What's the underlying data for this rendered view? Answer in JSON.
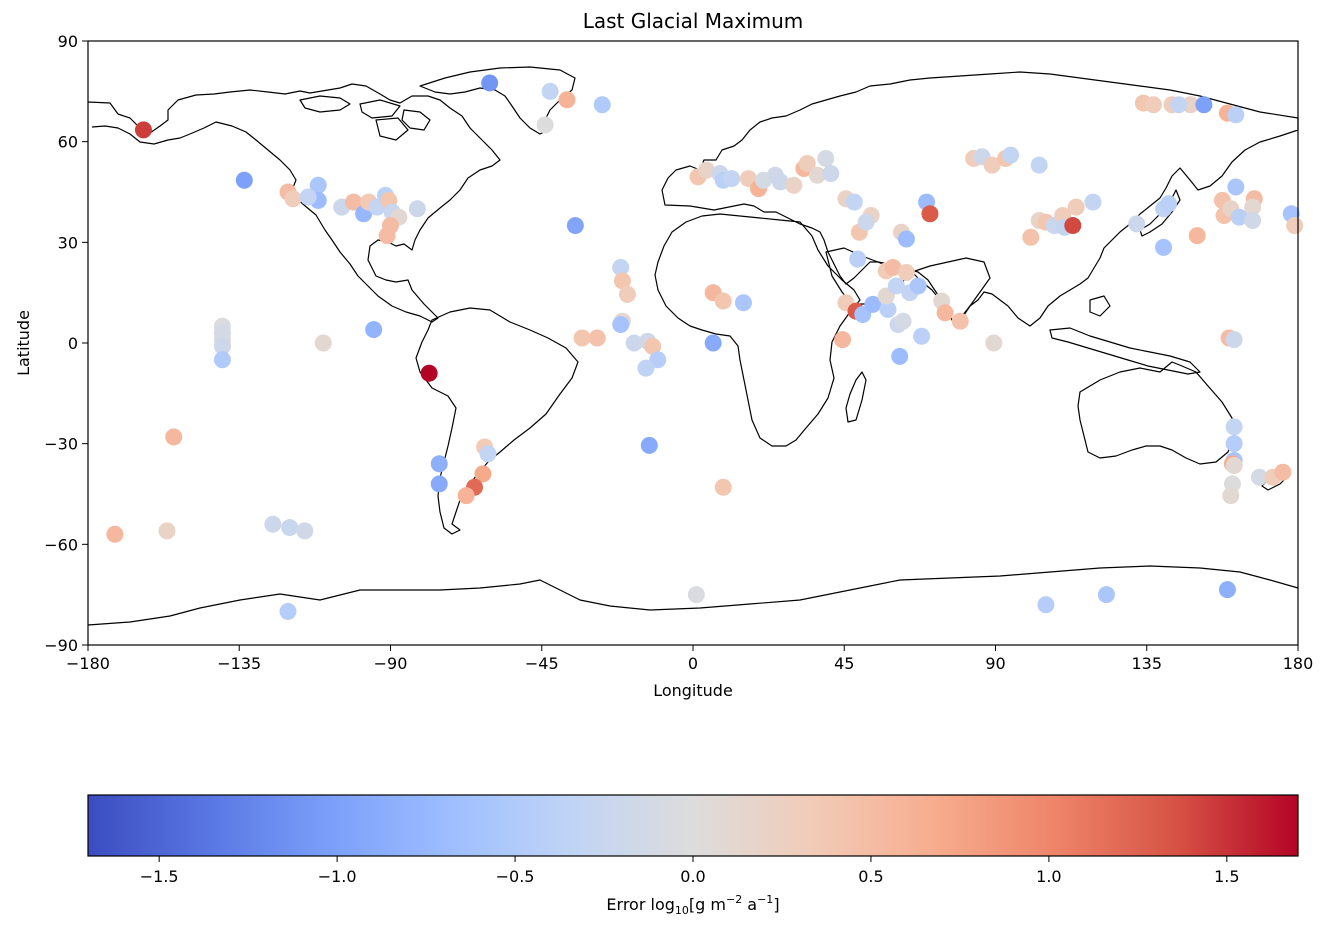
{
  "chart_data": {
    "type": "scatter",
    "title": "Last Glacial Maximum",
    "xlabel": "Longitude",
    "ylabel": "Latitude",
    "xlim": [
      -180,
      180
    ],
    "ylim": [
      -90,
      90
    ],
    "xticks": [
      -180,
      -135,
      -90,
      -45,
      0,
      45,
      90,
      135,
      180
    ],
    "xtick_labels": [
      "−180",
      "−135",
      "−90",
      "−45",
      "0",
      "45",
      "90",
      "135",
      "180"
    ],
    "yticks": [
      90,
      60,
      30,
      0,
      -30,
      -60,
      -90
    ],
    "ytick_labels": [
      "90",
      "60",
      "30",
      "0",
      "−30",
      "−60",
      "−90"
    ],
    "grid": false,
    "colormap": "coolwarm",
    "colorbar": {
      "label_prefix": "Error log",
      "label_sub": "10",
      "label_units_1": "[g m",
      "label_sup_1": "−2",
      "label_units_2": " a",
      "label_sup_2": "−1",
      "label_units_3": "]",
      "range": [
        -1.7,
        1.7
      ],
      "ticks": [
        -1.5,
        -1.0,
        -0.5,
        0.0,
        0.5,
        1.0,
        1.5
      ],
      "tick_labels": [
        "−1.5",
        "−1.0",
        "−0.5",
        "0.0",
        "0.5",
        "1.0",
        "1.5"
      ],
      "colors": [
        "#3b4cc0",
        "#5977e3",
        "#7b9ff9",
        "#9ebeff",
        "#c0d4f5",
        "#dddcdc",
        "#f2cbb7",
        "#f7ac8e",
        "#ee8468",
        "#d65244",
        "#b40426"
      ]
    },
    "points": [
      {
        "lon": -163.5,
        "lat": 63.5,
        "value": 1.45
      },
      {
        "lon": -133.5,
        "lat": 48.5,
        "value": -1.0
      },
      {
        "lon": -60.5,
        "lat": 77.5,
        "value": -1.1
      },
      {
        "lon": -42.5,
        "lat": 75.0,
        "value": -0.3
      },
      {
        "lon": -37.5,
        "lat": 72.5,
        "value": 0.6
      },
      {
        "lon": -44.0,
        "lat": 65.0,
        "value": 0.0
      },
      {
        "lon": -27.0,
        "lat": 71.0,
        "value": -0.5
      },
      {
        "lon": -120.5,
        "lat": 45.0,
        "value": 0.5
      },
      {
        "lon": -119.0,
        "lat": 43.0,
        "value": 0.3
      },
      {
        "lon": -111.5,
        "lat": 47.0,
        "value": -0.55
      },
      {
        "lon": -111.5,
        "lat": 42.5,
        "value": -0.7
      },
      {
        "lon": -114.5,
        "lat": 43.5,
        "value": -0.3
      },
      {
        "lon": -104.5,
        "lat": 40.5,
        "value": -0.2
      },
      {
        "lon": -101.0,
        "lat": 42.0,
        "value": 0.5
      },
      {
        "lon": -98.0,
        "lat": 38.5,
        "value": -0.75
      },
      {
        "lon": -96.5,
        "lat": 42.0,
        "value": 0.35
      },
      {
        "lon": -94.0,
        "lat": 40.5,
        "value": -0.3
      },
      {
        "lon": -91.5,
        "lat": 44.0,
        "value": -0.4
      },
      {
        "lon": -90.5,
        "lat": 42.5,
        "value": 0.4
      },
      {
        "lon": -89.5,
        "lat": 39.0,
        "value": -0.25
      },
      {
        "lon": -87.5,
        "lat": 37.5,
        "value": 0.1
      },
      {
        "lon": -90.0,
        "lat": 35.0,
        "value": 0.5
      },
      {
        "lon": -91.0,
        "lat": 32.0,
        "value": 0.5
      },
      {
        "lon": -82.0,
        "lat": 40.0,
        "value": -0.2
      },
      {
        "lon": -35.0,
        "lat": 35.0,
        "value": -0.95
      },
      {
        "lon": -140.0,
        "lat": 5.0,
        "value": -0.05
      },
      {
        "lon": -140.0,
        "lat": 3.0,
        "value": -0.1
      },
      {
        "lon": -140.0,
        "lat": 1.0,
        "value": -0.1
      },
      {
        "lon": -140.0,
        "lat": -1.0,
        "value": -0.2
      },
      {
        "lon": -140.0,
        "lat": -5.0,
        "value": -0.5
      },
      {
        "lon": -95.0,
        "lat": 4.0,
        "value": -0.8
      },
      {
        "lon": -110.0,
        "lat": 0.0,
        "value": 0.1
      },
      {
        "lon": -78.5,
        "lat": -9.0,
        "value": 1.7
      },
      {
        "lon": -154.5,
        "lat": -28.0,
        "value": 0.55
      },
      {
        "lon": -172.0,
        "lat": -57.0,
        "value": 0.55
      },
      {
        "lon": -156.5,
        "lat": -56.0,
        "value": 0.2
      },
      {
        "lon": -125.0,
        "lat": -54.0,
        "value": -0.2
      },
      {
        "lon": -120.0,
        "lat": -55.0,
        "value": -0.25
      },
      {
        "lon": -115.5,
        "lat": -56.0,
        "value": -0.15
      },
      {
        "lon": -120.5,
        "lat": -80.0,
        "value": -0.45
      },
      {
        "lon": -75.5,
        "lat": -36.0,
        "value": -0.85
      },
      {
        "lon": -75.5,
        "lat": -42.0,
        "value": -0.9
      },
      {
        "lon": -62.0,
        "lat": -31.0,
        "value": 0.35
      },
      {
        "lon": -61.0,
        "lat": -33.0,
        "value": -0.3
      },
      {
        "lon": -62.5,
        "lat": -39.0,
        "value": 0.7
      },
      {
        "lon": -65.0,
        "lat": -43.0,
        "value": 1.2
      },
      {
        "lon": -67.5,
        "lat": -45.5,
        "value": 0.6
      },
      {
        "lon": -28.5,
        "lat": 1.5,
        "value": 0.45
      },
      {
        "lon": -33.0,
        "lat": 1.5,
        "value": 0.4
      },
      {
        "lon": -21.5,
        "lat": 22.5,
        "value": -0.3
      },
      {
        "lon": -21.0,
        "lat": 18.5,
        "value": 0.4
      },
      {
        "lon": -19.5,
        "lat": 14.5,
        "value": 0.3
      },
      {
        "lon": -21.0,
        "lat": 6.5,
        "value": 0.1
      },
      {
        "lon": -21.5,
        "lat": 5.5,
        "value": -0.6
      },
      {
        "lon": -17.5,
        "lat": 0.0,
        "value": -0.2
      },
      {
        "lon": -13.5,
        "lat": 0.5,
        "value": -0.15
      },
      {
        "lon": -12.0,
        "lat": -1.0,
        "value": 0.4
      },
      {
        "lon": -10.5,
        "lat": -5.0,
        "value": -0.45
      },
      {
        "lon": -14.0,
        "lat": -7.5,
        "value": -0.35
      },
      {
        "lon": -13.0,
        "lat": -30.5,
        "value": -0.9
      },
      {
        "lon": 6.0,
        "lat": 15.0,
        "value": 0.55
      },
      {
        "lon": 9.0,
        "lat": 12.5,
        "value": 0.4
      },
      {
        "lon": 15.0,
        "lat": 12.0,
        "value": -0.55
      },
      {
        "lon": 6.0,
        "lat": 0.0,
        "value": -0.9
      },
      {
        "lon": 9.0,
        "lat": -43.0,
        "value": 0.4
      },
      {
        "lon": 1.0,
        "lat": -75.0,
        "value": -0.05
      },
      {
        "lon": 1.5,
        "lat": 49.5,
        "value": 0.4
      },
      {
        "lon": 4.0,
        "lat": 51.5,
        "value": 0.2
      },
      {
        "lon": 8.0,
        "lat": 50.5,
        "value": -0.2
      },
      {
        "lon": 9.0,
        "lat": 48.5,
        "value": -0.4
      },
      {
        "lon": 11.5,
        "lat": 49.0,
        "value": -0.3
      },
      {
        "lon": 16.5,
        "lat": 49.0,
        "value": 0.3
      },
      {
        "lon": 19.5,
        "lat": 46.0,
        "value": 0.6
      },
      {
        "lon": 21.0,
        "lat": 48.5,
        "value": -0.1
      },
      {
        "lon": 24.5,
        "lat": 50.0,
        "value": -0.15
      },
      {
        "lon": 26.0,
        "lat": 48.0,
        "value": -0.2
      },
      {
        "lon": 30.0,
        "lat": 47.0,
        "value": 0.2
      },
      {
        "lon": 33.0,
        "lat": 52.0,
        "value": 0.55
      },
      {
        "lon": 34.0,
        "lat": 53.5,
        "value": 0.3
      },
      {
        "lon": 39.5,
        "lat": 55.0,
        "value": -0.1
      },
      {
        "lon": 37.0,
        "lat": 50.0,
        "value": 0.1
      },
      {
        "lon": 41.0,
        "lat": 50.5,
        "value": -0.2
      },
      {
        "lon": 45.5,
        "lat": 43.0,
        "value": 0.2
      },
      {
        "lon": 48.0,
        "lat": 42.0,
        "value": -0.3
      },
      {
        "lon": 53.0,
        "lat": 38.0,
        "value": 0.2
      },
      {
        "lon": 49.5,
        "lat": 33.0,
        "value": 0.4
      },
      {
        "lon": 51.5,
        "lat": 36.0,
        "value": -0.2
      },
      {
        "lon": 62.0,
        "lat": 33.0,
        "value": 0.2
      },
      {
        "lon": 63.5,
        "lat": 31.0,
        "value": -0.7
      },
      {
        "lon": 69.5,
        "lat": 42.0,
        "value": -0.7
      },
      {
        "lon": 70.5,
        "lat": 38.5,
        "value": 1.3
      },
      {
        "lon": 49.0,
        "lat": 25.0,
        "value": -0.4
      },
      {
        "lon": 57.5,
        "lat": 21.5,
        "value": 0.35
      },
      {
        "lon": 59.5,
        "lat": 22.5,
        "value": 0.5
      },
      {
        "lon": 63.5,
        "lat": 21.0,
        "value": 0.3
      },
      {
        "lon": 45.5,
        "lat": 12.0,
        "value": 0.3
      },
      {
        "lon": 48.5,
        "lat": 9.5,
        "value": 1.3
      },
      {
        "lon": 50.5,
        "lat": 8.5,
        "value": -0.6
      },
      {
        "lon": 53.5,
        "lat": 11.5,
        "value": -0.7
      },
      {
        "lon": 58.0,
        "lat": 10.0,
        "value": -0.4
      },
      {
        "lon": 61.0,
        "lat": 5.5,
        "value": -0.2
      },
      {
        "lon": 62.5,
        "lat": 6.5,
        "value": -0.1
      },
      {
        "lon": 57.5,
        "lat": 14.0,
        "value": 0.1
      },
      {
        "lon": 60.5,
        "lat": 17.0,
        "value": -0.3
      },
      {
        "lon": 64.5,
        "lat": 15.0,
        "value": -0.3
      },
      {
        "lon": 67.0,
        "lat": 17.0,
        "value": -0.55
      },
      {
        "lon": 74.0,
        "lat": 12.5,
        "value": 0.1
      },
      {
        "lon": 75.0,
        "lat": 9.0,
        "value": 0.55
      },
      {
        "lon": 79.5,
        "lat": 6.5,
        "value": 0.45
      },
      {
        "lon": 68.0,
        "lat": 2.0,
        "value": -0.4
      },
      {
        "lon": 44.5,
        "lat": 1.0,
        "value": 0.55
      },
      {
        "lon": 61.5,
        "lat": -4.0,
        "value": -0.7
      },
      {
        "lon": 89.5,
        "lat": 0.0,
        "value": 0.1
      },
      {
        "lon": 83.5,
        "lat": 55.0,
        "value": 0.3
      },
      {
        "lon": 86.0,
        "lat": 55.5,
        "value": -0.2
      },
      {
        "lon": 89.0,
        "lat": 53.0,
        "value": 0.3
      },
      {
        "lon": 93.0,
        "lat": 55.0,
        "value": 0.4
      },
      {
        "lon": 94.5,
        "lat": 56.0,
        "value": -0.3
      },
      {
        "lon": 103.0,
        "lat": 53.0,
        "value": -0.3
      },
      {
        "lon": 100.5,
        "lat": 31.5,
        "value": 0.45
      },
      {
        "lon": 103.0,
        "lat": 36.5,
        "value": 0.2
      },
      {
        "lon": 105.0,
        "lat": 36.0,
        "value": 0.4
      },
      {
        "lon": 107.5,
        "lat": 35.0,
        "value": -0.25
      },
      {
        "lon": 110.0,
        "lat": 38.0,
        "value": 0.3
      },
      {
        "lon": 110.5,
        "lat": 34.5,
        "value": -0.3
      },
      {
        "lon": 113.0,
        "lat": 35.0,
        "value": 1.4
      },
      {
        "lon": 114.0,
        "lat": 40.5,
        "value": 0.3
      },
      {
        "lon": 119.0,
        "lat": 42.0,
        "value": -0.3
      },
      {
        "lon": 132.0,
        "lat": 35.5,
        "value": -0.2
      },
      {
        "lon": 140.0,
        "lat": 40.0,
        "value": -0.35
      },
      {
        "lon": 141.5,
        "lat": 41.5,
        "value": -0.4
      },
      {
        "lon": 140.0,
        "lat": 28.5,
        "value": -0.6
      },
      {
        "lon": 150.0,
        "lat": 32.0,
        "value": 0.55
      },
      {
        "lon": 134.0,
        "lat": 71.5,
        "value": 0.4
      },
      {
        "lon": 137.0,
        "lat": 71.0,
        "value": 0.3
      },
      {
        "lon": 142.5,
        "lat": 71.0,
        "value": 0.3
      },
      {
        "lon": 148.0,
        "lat": 71.0,
        "value": 0.2
      },
      {
        "lon": 144.5,
        "lat": 71.0,
        "value": -0.3
      },
      {
        "lon": 152.0,
        "lat": 71.0,
        "value": -1.0
      },
      {
        "lon": 159.0,
        "lat": 68.5,
        "value": 0.6
      },
      {
        "lon": 161.5,
        "lat": 68.0,
        "value": -0.4
      },
      {
        "lon": 157.5,
        "lat": 42.5,
        "value": 0.45
      },
      {
        "lon": 158.0,
        "lat": 38.0,
        "value": 0.45
      },
      {
        "lon": 160.0,
        "lat": 40.0,
        "value": 0.2
      },
      {
        "lon": 161.5,
        "lat": 46.5,
        "value": -0.55
      },
      {
        "lon": 162.5,
        "lat": 37.5,
        "value": -0.4
      },
      {
        "lon": 167.0,
        "lat": 43.0,
        "value": 0.5
      },
      {
        "lon": 166.5,
        "lat": 40.5,
        "value": 0.1
      },
      {
        "lon": 166.5,
        "lat": 36.5,
        "value": -0.15
      },
      {
        "lon": 178.0,
        "lat": 38.5,
        "value": -0.6
      },
      {
        "lon": 179.0,
        "lat": 35.0,
        "value": 0.3
      },
      {
        "lon": 159.5,
        "lat": 1.5,
        "value": 0.5
      },
      {
        "lon": 161.0,
        "lat": 1.0,
        "value": -0.2
      },
      {
        "lon": 161.0,
        "lat": -25.0,
        "value": -0.3
      },
      {
        "lon": 161.0,
        "lat": -30.0,
        "value": -0.45
      },
      {
        "lon": 161.0,
        "lat": -35.0,
        "value": -0.6
      },
      {
        "lon": 160.5,
        "lat": -36.0,
        "value": 0.7
      },
      {
        "lon": 161.0,
        "lat": -36.5,
        "value": 0.1
      },
      {
        "lon": 160.5,
        "lat": -42.0,
        "value": 0.0
      },
      {
        "lon": 160.0,
        "lat": -45.5,
        "value": 0.1
      },
      {
        "lon": 168.5,
        "lat": -40.0,
        "value": -0.1
      },
      {
        "lon": 172.5,
        "lat": -40.0,
        "value": 0.3
      },
      {
        "lon": 175.5,
        "lat": -38.5,
        "value": 0.5
      },
      {
        "lon": 105.0,
        "lat": -78.0,
        "value": -0.45
      },
      {
        "lon": 123.0,
        "lat": -75.0,
        "value": -0.55
      },
      {
        "lon": 159.0,
        "lat": -73.5,
        "value": -0.85
      }
    ]
  }
}
